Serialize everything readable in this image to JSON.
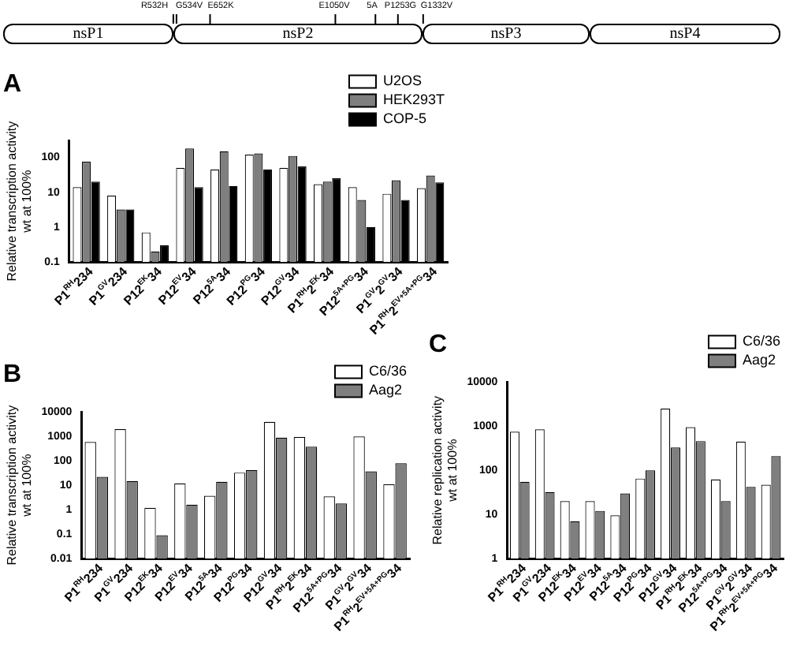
{
  "chart_data": [
    {
      "type": "other",
      "categories": [
        "nsP1",
        "nsP2",
        "nsP3",
        "nsP4"
      ],
      "annotations": [
        "R532H",
        "G534V",
        "E652K",
        "E1050V",
        "5A",
        "P1253G",
        "G1332V"
      ]
    },
    {
      "type": "bar",
      "title": "A",
      "ylabel": "Relative transcription activity\nwt at 100%",
      "categories": [
        "P1$^{RH}$234",
        "P1$^{GV}$234",
        "P12$^{EK}$34",
        "P12$^{EV}$34",
        "P12$^{5A}$34",
        "P12$^{PG}$34",
        "P12$^{GV}$34",
        "P1$^{RH}$2$^{EK}$34",
        "P12$^{5A+PG}$34",
        "P1$^{GV}$2$^{GV}$34",
        "P1$^{RH}$2$^{EV+5A+PG}$34"
      ],
      "series": [
        {
          "name": "U2OS",
          "color": "#ffffff",
          "values": [
            14,
            8,
            0.7,
            50,
            45,
            120,
            50,
            17,
            14,
            9,
            13
          ]
        },
        {
          "name": "HEK293T",
          "color": "#7f7f7f",
          "values": [
            75,
            3.2,
            0.2,
            180,
            150,
            130,
            110,
            20,
            6,
            22,
            30
          ]
        },
        {
          "name": "COP-5",
          "color": "#000000",
          "values": [
            20,
            3.2,
            0.3,
            14,
            15,
            45,
            55,
            25,
            1,
            6,
            19
          ]
        }
      ],
      "ylim": [
        0.1,
        300
      ],
      "yticks": [
        0.1,
        1,
        10,
        100
      ],
      "log": "y",
      "grid": false,
      "legend": "top right"
    },
    {
      "type": "bar",
      "title": "B",
      "ylabel": "Relative transcription activity\nwt at 100%",
      "categories": [
        "P1$^{RH}$234",
        "P1$^{GV}$234",
        "P12$^{EK}$34",
        "P12$^{EV}$34",
        "P12$^{5A}$34",
        "P12$^{PG}$34",
        "P12$^{GV}$34",
        "P1$^{RH}$2$^{EK}$34",
        "P12$^{5A+PG}$34",
        "P1$^{GV}$2$^{GV}$34",
        "P1$^{RH}$2$^{EV+5A+PG}$34"
      ],
      "series": [
        {
          "name": "C6/36",
          "color": "#ffffff",
          "values": [
            600,
            2000,
            1.2,
            12,
            3.7,
            33,
            4000,
            950,
            3.5,
            1000,
            11
          ]
        },
        {
          "name": "Aag2",
          "color": "#7f7f7f",
          "values": [
            22,
            15,
            0.09,
            1.6,
            14,
            42,
            900,
            380,
            1.8,
            37,
            80
          ]
        }
      ],
      "ylim": [
        0.01,
        10000
      ],
      "yticks": [
        0.01,
        0.1,
        1,
        10,
        100,
        1000,
        10000
      ],
      "log": "y",
      "grid": false,
      "legend": "top right"
    },
    {
      "type": "bar",
      "title": "C",
      "ylabel": "Relative replication activity\nwt at 100%",
      "categories": [
        "P1$^{RH}$234",
        "P1$^{GV}$234",
        "P12$^{EK}$34",
        "P12$^{EV}$34",
        "P12$^{5A}$34",
        "P12$^{PG}$34",
        "P12$^{GV}$34",
        "P1$^{RH}$2$^{EK}$34",
        "P12$^{5A+PG}$34",
        "P1$^{GV}$2$^{GV}$34",
        "P1$^{RH}$2$^{EV+5A+PG}$34"
      ],
      "series": [
        {
          "name": "C6/36",
          "color": "#ffffff",
          "values": [
            750,
            850,
            20,
            20,
            9.5,
            65,
            2500,
            950,
            62,
            450,
            47
          ]
        },
        {
          "name": "Aag2",
          "color": "#7f7f7f",
          "values": [
            55,
            32,
            7,
            12,
            30,
            100,
            330,
            460,
            20,
            42,
            210
          ]
        }
      ],
      "ylim": [
        1,
        10000
      ],
      "yticks": [
        1,
        10,
        100,
        1000,
        10000
      ],
      "log": "y",
      "grid": false,
      "legend": "top right"
    }
  ]
}
